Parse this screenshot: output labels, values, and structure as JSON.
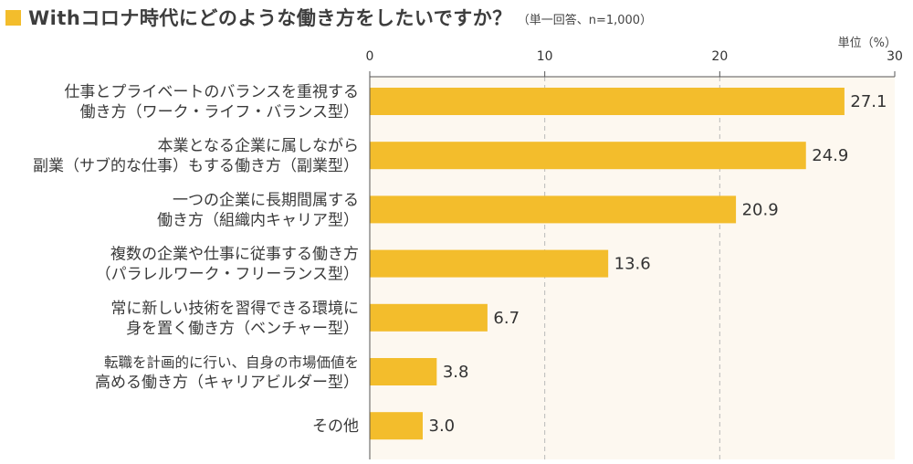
{
  "title": "Withコロナ時代にどのような働き方をしたいですか？",
  "subtitle": "（単一回答、n=1,000）",
  "unit": "単位（%）",
  "colors": {
    "bar": "#f3bd2c",
    "plot_bg": "#fdf8f0",
    "accent_square": "#f3bd2c",
    "grid": "#b9b9b9"
  },
  "chart_data": {
    "type": "bar",
    "orientation": "horizontal",
    "categories": [
      [
        "仕事とプライベートのバランスを重視する",
        "働き方（ワーク・ライフ・バランス型）"
      ],
      [
        "本業となる企業に属しながら",
        "副業（サブ的な仕事）もする働き方（副業型）"
      ],
      [
        "一つの企業に長期間属する",
        "働き方（組織内キャリア型）"
      ],
      [
        "複数の企業や仕事に従事する働き方",
        "（パラレルワーク・フリーランス型）"
      ],
      [
        "常に新しい技術を習得できる環境に",
        "身を置く働き方（ベンチャー型）"
      ],
      [
        "転職を計画的に行い、自身の市場価値を",
        "高める働き方（キャリアビルダー型）"
      ],
      [
        "その他"
      ]
    ],
    "values": [
      27.1,
      24.9,
      20.9,
      13.6,
      6.7,
      3.8,
      3.0
    ],
    "value_labels": [
      "27.1",
      "24.9",
      "20.9",
      "13.6",
      "6.7",
      "3.8",
      "3.0"
    ],
    "xlim": [
      0,
      30
    ],
    "xticks": [
      0,
      10,
      20,
      30
    ],
    "grid": "vertical dashed",
    "legend": "none"
  }
}
